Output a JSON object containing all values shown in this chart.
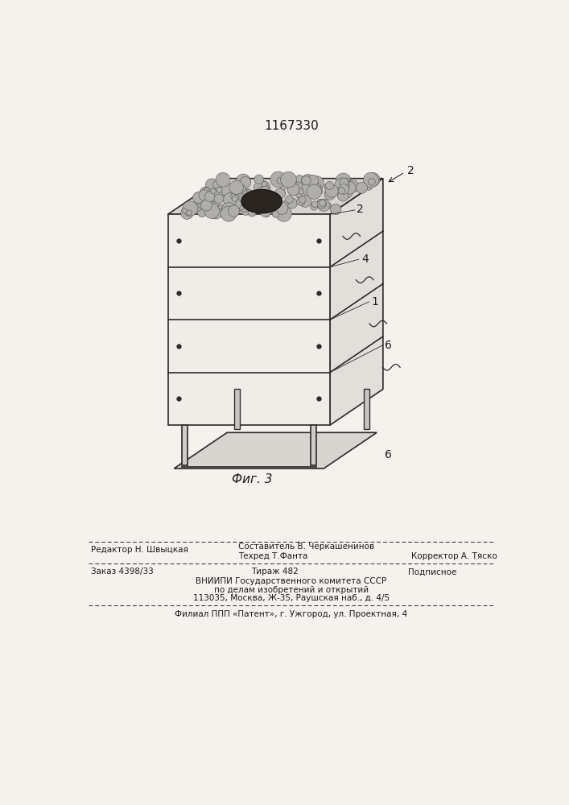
{
  "patent_number": "1167330",
  "fig_label": "Фиг. 3",
  "bg_color": "#f5f2ee",
  "footer_editor": "Редактор Н. Швыцкая",
  "footer_composer": "Составитель В. Черкашенинов",
  "footer_tech": "Техред Т.Фанта",
  "footer_corrector": "Корректор А. Тяско",
  "footer_order": "Заказ 4398/33",
  "footer_tirazh": "Тираж 482",
  "footer_podp": "Подписное",
  "footer_vniip1": "ВНИИПИ Государственного комитета СССР",
  "footer_vniip2": "по делам изобретений и открытий",
  "footer_vniip3": "113035, Москва, Ж-35, Раушская наб., д. 4/5",
  "footer_filial": "Филиал ППП «Патент», г. Ужгород, ул. Проектная, 4"
}
